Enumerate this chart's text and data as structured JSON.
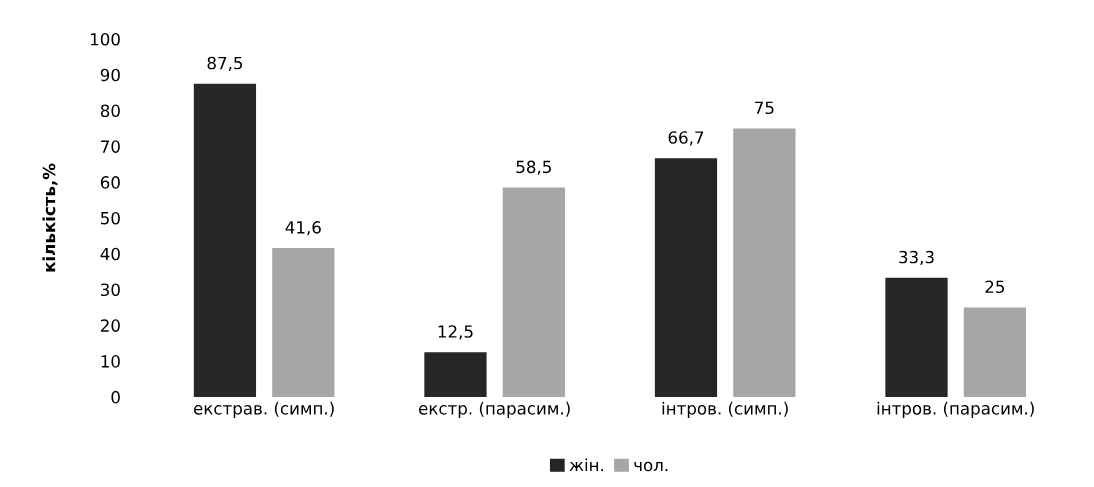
{
  "chart_data": {
    "type": "bar",
    "ylabel": "кількість,%",
    "categories": [
      "екстрав. (симп.)",
      "екстр. (парасим.)",
      "інтров. (симп.)",
      "інтров. (парасим.)"
    ],
    "series": [
      {
        "name": "жін.",
        "color": "#262626",
        "values": [
          87.5,
          12.5,
          66.7,
          33.3
        ],
        "value_labels": [
          "87,5",
          "12,5",
          "66,7",
          "33,3"
        ]
      },
      {
        "name": "чол.",
        "color": "#a6a6a6",
        "values": [
          41.6,
          58.5,
          75,
          25
        ],
        "value_labels": [
          "41,6",
          "58,5",
          "75",
          "25"
        ]
      }
    ],
    "ylim": [
      0,
      100
    ],
    "yticks": [
      0,
      10,
      20,
      30,
      40,
      50,
      60,
      70,
      80,
      90,
      100
    ],
    "grid": false,
    "legend": "bottom"
  }
}
